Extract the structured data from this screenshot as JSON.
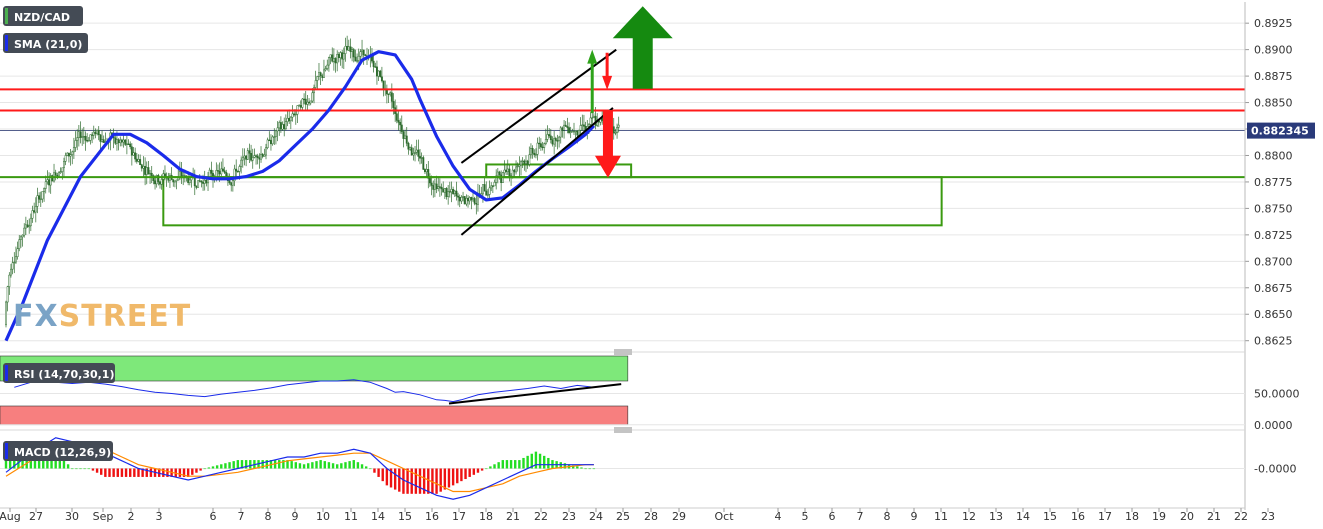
{
  "chart_data": [
    {
      "type": "candlestick",
      "panel": "price",
      "series": [
        {
          "name": "NZD/CAD",
          "kind": "ohlc"
        },
        {
          "name": "SMA (21,0)",
          "kind": "line",
          "color": "#1a2bea"
        }
      ],
      "ylim": [
        0.862,
        0.8945
      ],
      "y_ticks": [
        0.8625,
        0.865,
        0.8675,
        0.87,
        0.8725,
        0.875,
        0.8775,
        0.88,
        0.8825,
        0.885,
        0.8875,
        0.89,
        0.8925
      ],
      "y_tick_labels": [
        "0.8625",
        "0.8650",
        "0.8675",
        "0.8700",
        "0.8725",
        "0.8750",
        "0.8775",
        "0.8800",
        "0.8825",
        "0.8850",
        "0.8875",
        "0.8900",
        "0.8925"
      ],
      "last_price": 0.88235,
      "last_price_label": "0.882345",
      "sma_path": [
        [
          0,
          0.8625
        ],
        [
          2,
          0.866
        ],
        [
          5,
          0.872
        ],
        [
          9,
          0.878
        ],
        [
          13,
          0.882
        ],
        [
          15,
          0.882
        ],
        [
          17,
          0.8812
        ],
        [
          19,
          0.88
        ],
        [
          21,
          0.8787
        ],
        [
          23,
          0.878
        ],
        [
          25,
          0.8778
        ],
        [
          27,
          0.8778
        ],
        [
          29,
          0.878
        ],
        [
          31,
          0.8785
        ],
        [
          33,
          0.8795
        ],
        [
          35,
          0.881
        ],
        [
          37,
          0.8825
        ],
        [
          39,
          0.8843
        ],
        [
          41,
          0.8865
        ],
        [
          43,
          0.889
        ],
        [
          45,
          0.8898
        ],
        [
          47,
          0.8895
        ],
        [
          49,
          0.8872
        ],
        [
          50,
          0.8853
        ],
        [
          52,
          0.8818
        ],
        [
          54,
          0.879
        ],
        [
          56,
          0.8768
        ],
        [
          58,
          0.8758
        ],
        [
          60,
          0.876
        ],
        [
          62,
          0.8772
        ],
        [
          64,
          0.8785
        ],
        [
          66,
          0.8797
        ],
        [
          68,
          0.8808
        ],
        [
          70,
          0.882
        ],
        [
          71,
          0.8828
        ]
      ],
      "horizontal_levels": [
        {
          "value": 0.88625,
          "color": "#ff1a1a"
        },
        {
          "value": 0.88425,
          "color": "#ff1a1a"
        },
        {
          "value": 0.87795,
          "color": "#3a9a10"
        }
      ],
      "zones": [
        {
          "x_start": 19,
          "x_end": 113,
          "y_low": 0.8734,
          "y_high": 0.87795,
          "color": "#3a9a10"
        },
        {
          "x_start": 58,
          "x_end": 75.5,
          "y_low": 0.87795,
          "y_high": 0.87915,
          "color": "#3a9a10"
        }
      ],
      "trendlines": [
        {
          "from": [
            55,
            0.8793
          ],
          "to": [
            73.7,
            0.89
          ],
          "color": "#000000"
        },
        {
          "from": [
            55,
            0.8725
          ],
          "to": [
            73.3,
            0.8845
          ],
          "color": "#000000"
        }
      ],
      "arrows": [
        {
          "x": 70.8,
          "from": 0.884,
          "to": 0.89,
          "direction": "up",
          "color": "#2ea31a",
          "size": "small"
        },
        {
          "x": 72.6,
          "from": 0.8897,
          "to": 0.8862,
          "direction": "down",
          "color": "#ff1a1a",
          "size": "small"
        },
        {
          "x": 72.7,
          "from": 0.8843,
          "to": 0.8779,
          "direction": "down",
          "color": "#ff1a1a",
          "size": "medium"
        },
        {
          "x": 76.9,
          "from": 0.8863,
          "to": 0.8941,
          "direction": "up",
          "color": "#158a10",
          "size": "large"
        }
      ]
    },
    {
      "type": "line",
      "panel": "rsi",
      "series": [
        {
          "name": "RSI (14,70,30,1)",
          "color": "#1a2bea"
        }
      ],
      "y_ticks": [
        0,
        50
      ],
      "y_tick_labels": [
        "0.0000",
        "50.0000"
      ],
      "ylim": [
        -2,
        110
      ],
      "bands": [
        {
          "y_low": 70,
          "y_high": 110,
          "color": "#7ee87a"
        },
        {
          "y_low": 0,
          "y_high": 30,
          "color": "#f77f7f"
        }
      ],
      "trendlines": [
        {
          "from": [
            53.5,
            34
          ],
          "to": [
            74.3,
            65
          ],
          "color": "#000000"
        }
      ],
      "values": [
        [
          1,
          60
        ],
        [
          4,
          72
        ],
        [
          6,
          68
        ],
        [
          8,
          66
        ],
        [
          10,
          68
        ],
        [
          12,
          65
        ],
        [
          14,
          61
        ],
        [
          16,
          56
        ],
        [
          18,
          52
        ],
        [
          20,
          50
        ],
        [
          22,
          47
        ],
        [
          24,
          45
        ],
        [
          26,
          49
        ],
        [
          28,
          52
        ],
        [
          30,
          55
        ],
        [
          32,
          59
        ],
        [
          34,
          64
        ],
        [
          36,
          67
        ],
        [
          38,
          70
        ],
        [
          40,
          70
        ],
        [
          42,
          72
        ],
        [
          44,
          68
        ],
        [
          46,
          58
        ],
        [
          47,
          52
        ],
        [
          48,
          53
        ],
        [
          50,
          48
        ],
        [
          52,
          40
        ],
        [
          53,
          39
        ],
        [
          54,
          37
        ],
        [
          55,
          40
        ],
        [
          57,
          48
        ],
        [
          59,
          52
        ],
        [
          61,
          55
        ],
        [
          63,
          58
        ],
        [
          65,
          62
        ],
        [
          67,
          58
        ],
        [
          69,
          63
        ],
        [
          71,
          60
        ]
      ]
    },
    {
      "type": "line",
      "panel": "macd",
      "series": [
        {
          "name": "MACD (12,26,9)",
          "kind": "line",
          "color": "#1a2bea"
        },
        {
          "name": "signal",
          "kind": "line",
          "color": "#ff8a00"
        },
        {
          "name": "histogram",
          "kind": "bar"
        }
      ],
      "y_ticks": [
        0
      ],
      "y_tick_labels": [
        "-0.0000"
      ],
      "ylim": [
        -0.009,
        0.009
      ],
      "macd": [
        [
          0,
          -0.001
        ],
        [
          3,
          0.004
        ],
        [
          6,
          0.008
        ],
        [
          8,
          0.007
        ],
        [
          10,
          0.006
        ],
        [
          12,
          0.004
        ],
        [
          14,
          0.002
        ],
        [
          16,
          0
        ],
        [
          18,
          -0.001
        ],
        [
          20,
          -0.002
        ],
        [
          22,
          -0.003
        ],
        [
          24,
          -0.002
        ],
        [
          26,
          -0.001
        ],
        [
          28,
          0
        ],
        [
          30,
          0.001
        ],
        [
          32,
          0.002
        ],
        [
          34,
          0.003
        ],
        [
          36,
          0.003
        ],
        [
          38,
          0.004
        ],
        [
          40,
          0.004
        ],
        [
          42,
          0.005
        ],
        [
          44,
          0.004
        ],
        [
          46,
          0
        ],
        [
          48,
          -0.003
        ],
        [
          50,
          -0.005
        ],
        [
          52,
          -0.007
        ],
        [
          54,
          -0.008
        ],
        [
          56,
          -0.007
        ],
        [
          58,
          -0.005
        ],
        [
          60,
          -0.003
        ],
        [
          62,
          -0.001
        ],
        [
          64,
          0.001
        ],
        [
          66,
          0.001
        ],
        [
          68,
          0.001
        ],
        [
          70,
          0.001
        ],
        [
          71,
          0.001
        ]
      ],
      "signal": [
        [
          0,
          -0.002
        ],
        [
          3,
          0.002
        ],
        [
          6,
          0.006
        ],
        [
          8,
          0.007
        ],
        [
          10,
          0.006
        ],
        [
          12,
          0.005
        ],
        [
          14,
          0.003
        ],
        [
          16,
          0.001
        ],
        [
          18,
          0
        ],
        [
          20,
          -0.001
        ],
        [
          22,
          -0.002
        ],
        [
          24,
          -0.002
        ],
        [
          26,
          -0.0015
        ],
        [
          28,
          -0.001
        ],
        [
          30,
          0
        ],
        [
          32,
          0.001
        ],
        [
          34,
          0.002
        ],
        [
          36,
          0.0025
        ],
        [
          38,
          0.003
        ],
        [
          40,
          0.0035
        ],
        [
          42,
          0.004
        ],
        [
          44,
          0.004
        ],
        [
          46,
          0.002
        ],
        [
          48,
          0
        ],
        [
          50,
          -0.002
        ],
        [
          52,
          -0.004
        ],
        [
          54,
          -0.006
        ],
        [
          56,
          -0.006
        ],
        [
          58,
          -0.005
        ],
        [
          60,
          -0.004
        ],
        [
          62,
          -0.002
        ],
        [
          64,
          -0.001
        ],
        [
          66,
          0
        ],
        [
          68,
          0.0005
        ],
        [
          70,
          0.001
        ],
        [
          71,
          0.001
        ]
      ]
    }
  ],
  "x_axis": {
    "tick_labels": [
      "Aug",
      "27",
      "30",
      "Sep",
      "2",
      "3",
      "6",
      "7",
      "8",
      "9",
      "10",
      "11",
      "14",
      "15",
      "16",
      "17",
      "18",
      "21",
      "22",
      "23",
      "24",
      "25",
      "28",
      "29",
      "Oct",
      "4",
      "5",
      "6",
      "7",
      "8",
      "9",
      "11",
      "12",
      "13",
      "14",
      "15",
      "16",
      "17",
      "18",
      "19",
      "20",
      "21",
      "22",
      "23"
    ]
  },
  "watermark": {
    "part1": "FX",
    "part2": "STREET"
  },
  "colors": {
    "axis_text": "#333333",
    "grid": "#e6e6e6",
    "candle": "#2d6b2d",
    "legend_bg": "#444b55"
  }
}
